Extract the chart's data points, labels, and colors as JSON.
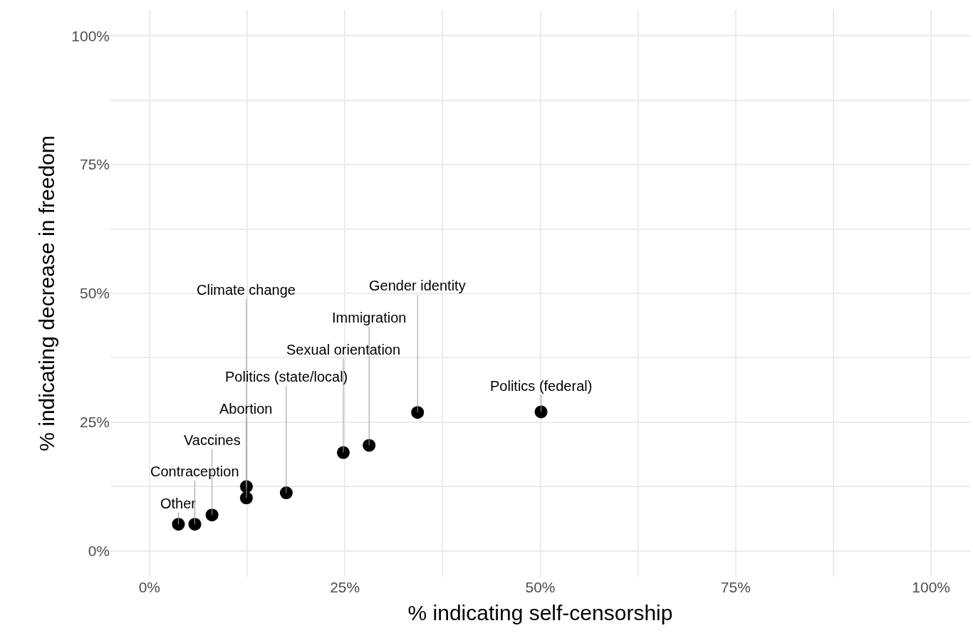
{
  "chart_data": {
    "type": "scatter",
    "xlabel": "% indicating self-censorship",
    "ylabel": "% indicating decrease in freedom",
    "x": [
      3.7,
      5.8,
      8.0,
      12.4,
      12.4,
      17.5,
      24.8,
      28.1,
      34.3,
      50.1
    ],
    "series": [
      {
        "color": "#000000",
        "values": [
          5.2,
          5.2,
          7.0,
          12.5,
          10.3,
          11.3,
          19.1,
          20.5,
          26.9,
          27.0
        ]
      }
    ],
    "annotations": [
      {
        "text": "Other",
        "x": 3.7,
        "y": 5.2
      },
      {
        "text": "Contraception",
        "x": 5.8,
        "y": 5.2
      },
      {
        "text": "Vaccines",
        "x": 8.0,
        "y": 7.0
      },
      {
        "text": "Climate change",
        "x": 12.4,
        "y": 12.5
      },
      {
        "text": "Abortion",
        "x": 12.4,
        "y": 10.3
      },
      {
        "text": "Politics (state/local)",
        "x": 17.5,
        "y": 11.3
      },
      {
        "text": "Sexual orientation",
        "x": 24.8,
        "y": 19.1
      },
      {
        "text": "Immigration",
        "x": 28.1,
        "y": 20.5
      },
      {
        "text": "Gender identity",
        "x": 34.3,
        "y": 26.9
      },
      {
        "text": "Politics (federal)",
        "x": 50.1,
        "y": 27.0
      }
    ],
    "xlim": [
      -5,
      105
    ],
    "ylim": [
      -5,
      105
    ],
    "xticks": [
      {
        "value": 0,
        "label": "0%"
      },
      {
        "value": 12.5,
        "label": null
      },
      {
        "value": 25,
        "label": "25%"
      },
      {
        "value": 37.5,
        "label": null
      },
      {
        "value": 50,
        "label": "50%"
      },
      {
        "value": 62.5,
        "label": null
      },
      {
        "value": 75,
        "label": "75%"
      },
      {
        "value": 87.5,
        "label": null
      },
      {
        "value": 100,
        "label": "100%"
      }
    ],
    "yticks": [
      {
        "value": 0,
        "label": "0%"
      },
      {
        "value": 12.5,
        "label": null
      },
      {
        "value": 25,
        "label": "25%"
      },
      {
        "value": 37.5,
        "label": null
      },
      {
        "value": 50,
        "label": "50%"
      },
      {
        "value": 62.5,
        "label": null
      },
      {
        "value": 75,
        "label": "75%"
      },
      {
        "value": 87.5,
        "label": null
      },
      {
        "value": 100,
        "label": "100%"
      }
    ],
    "grid": true,
    "marker": "circle"
  }
}
